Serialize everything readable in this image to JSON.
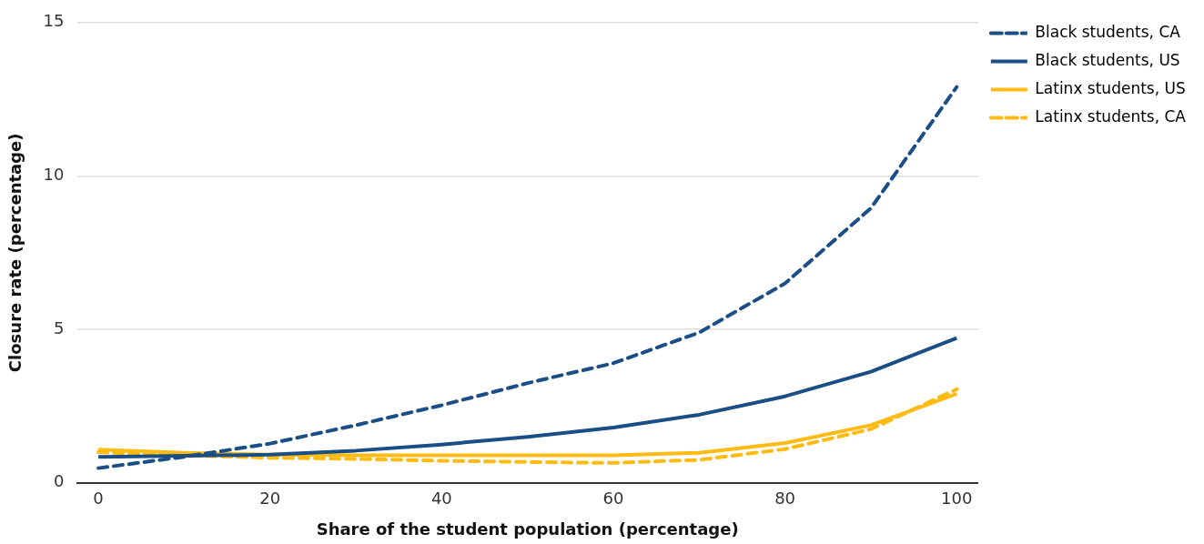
{
  "chart_data": {
    "type": "line",
    "xlabel": "Share of the student population (percentage)",
    "ylabel": "Closure rate (percentage)",
    "x": [
      0,
      10,
      20,
      30,
      40,
      50,
      60,
      70,
      80,
      90,
      100
    ],
    "xlim": [
      -2.5,
      102.5
    ],
    "xticks": [
      0,
      20,
      40,
      60,
      80,
      100
    ],
    "ylim": [
      0,
      15
    ],
    "yticks": [
      0,
      5,
      10,
      15
    ],
    "grid": "y",
    "legend": "top right",
    "marker": "none",
    "series": [
      {
        "name": "Black students, CA",
        "color": "#1a4e85",
        "line_style": "dashed",
        "values": [
          0.48,
          0.85,
          1.28,
          1.88,
          2.53,
          3.25,
          3.9,
          4.9,
          6.5,
          8.95,
          12.9
        ]
      },
      {
        "name": "Black students, US",
        "color": "#1a4e85",
        "line_style": "solid",
        "values": [
          0.85,
          0.88,
          0.92,
          1.05,
          1.25,
          1.5,
          1.8,
          2.22,
          2.82,
          3.62,
          4.72
        ]
      },
      {
        "name": "Latinx students, US",
        "color": "#fdbb13",
        "line_style": "solid",
        "values": [
          1.08,
          0.98,
          0.92,
          0.9,
          0.9,
          0.9,
          0.9,
          0.98,
          1.3,
          1.88,
          2.9
        ]
      },
      {
        "name": "Latinx students, CA",
        "color": "#fdbb13",
        "line_style": "dashed",
        "values": [
          1.0,
          0.9,
          0.82,
          0.78,
          0.72,
          0.68,
          0.65,
          0.75,
          1.1,
          1.75,
          3.05
        ]
      }
    ]
  }
}
